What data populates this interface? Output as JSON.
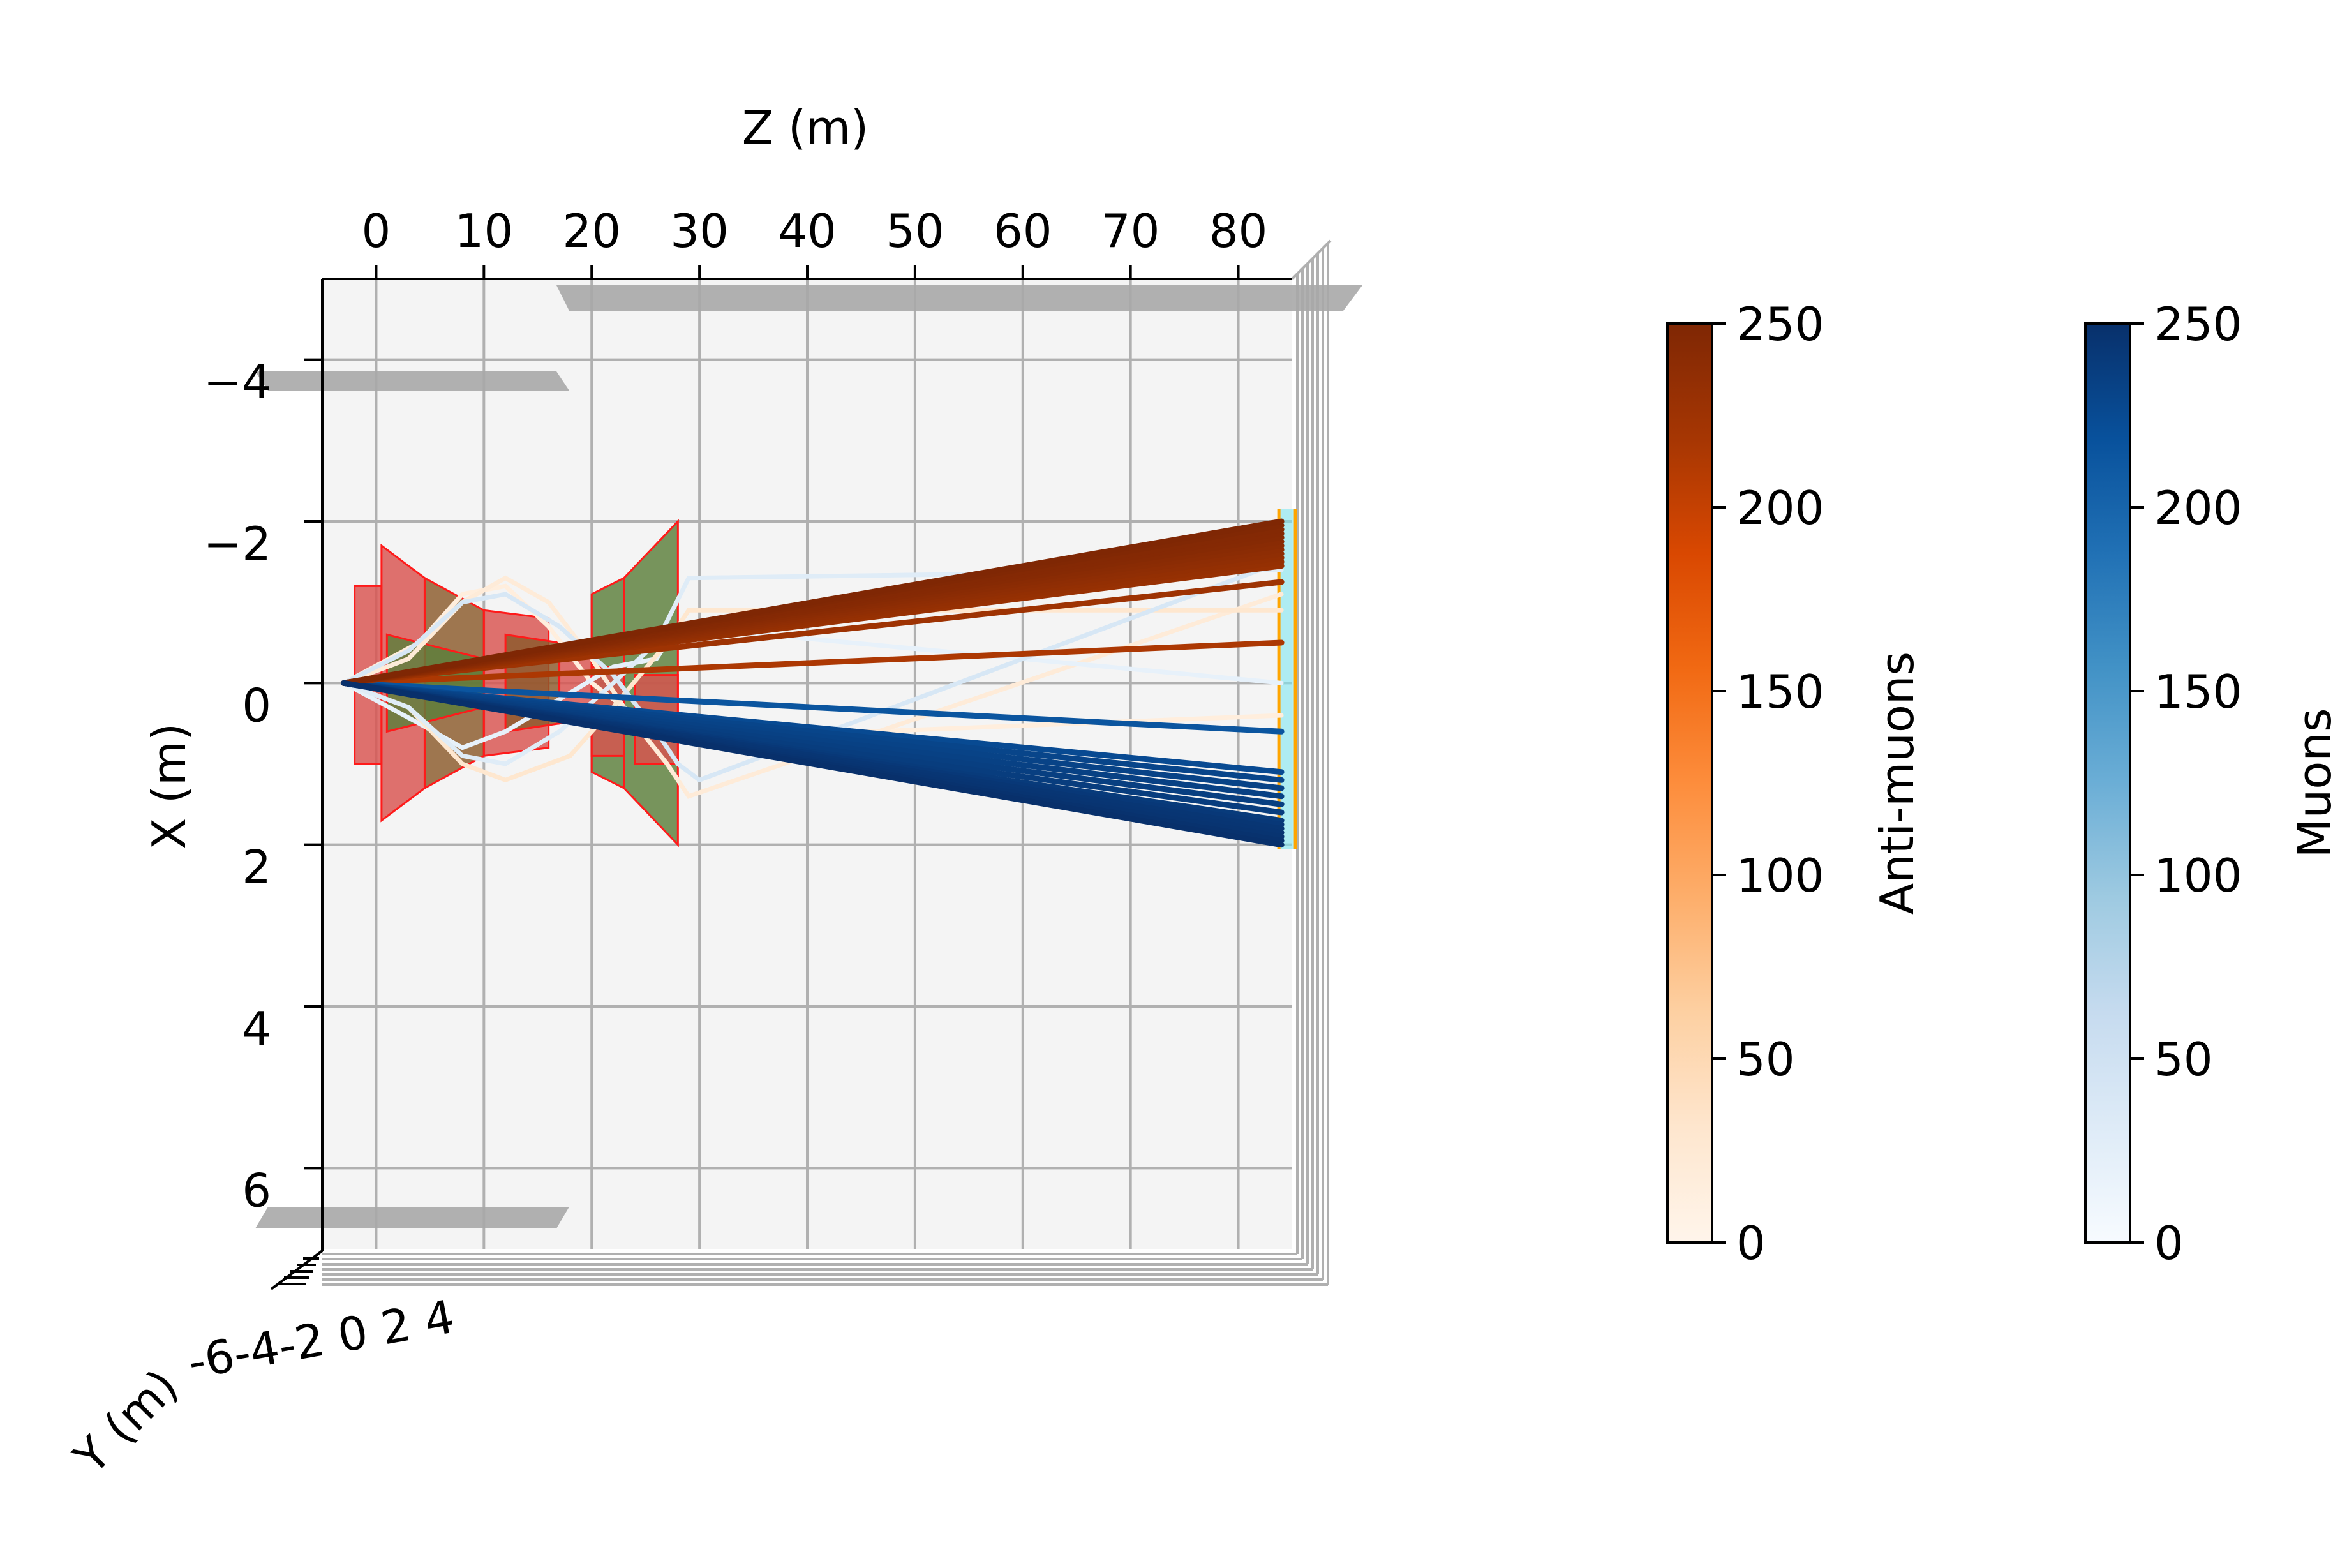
{
  "chart_data": {
    "type": "line",
    "projection": "3d",
    "view": "top-down (Z horizontal, X vertical)",
    "xlabel": "Z (m)",
    "ylabel": "X (m)",
    "zlabel": "Y (m)",
    "z_ticks": [
      0,
      10,
      20,
      30,
      40,
      50,
      60,
      70,
      80
    ],
    "x_ticks": [
      -4,
      -2,
      0,
      2,
      4,
      6
    ],
    "y_axis_ticks_label": "-6-4-2 0 2 4",
    "xlim_z": [
      -5,
      85
    ],
    "ylim_x": [
      -5,
      7
    ],
    "grid": true,
    "background_color": "#f4f4f4",
    "colorbars": [
      {
        "label": "Anti-muons",
        "colormap": "Oranges",
        "ticks": [
          0,
          50,
          100,
          150,
          200,
          250
        ],
        "range": [
          0,
          250
        ]
      },
      {
        "label": "Muons",
        "colormap": "Blues",
        "ticks": [
          0,
          50,
          100,
          150,
          200,
          250
        ],
        "range": [
          0,
          250
        ]
      }
    ],
    "detector_plane_z": 84,
    "colors": {
      "magnet_red": "#d9534f",
      "magnet_green": "#5b7f3a",
      "magnet_brown": "#8b5a2b",
      "plane_orange": "#ffa500",
      "plane_cyan": "#7fe6f0",
      "frame_gray": "#a9a9a9",
      "dark_orange": "#7f2704",
      "dark_blue": "#08306b"
    },
    "series": [
      {
        "kind": "anti-muon",
        "momentum": 250,
        "points": [
          [
            -3,
            0
          ],
          [
            84,
            -2.0
          ]
        ]
      },
      {
        "kind": "anti-muon",
        "momentum": 248,
        "points": [
          [
            -3,
            0
          ],
          [
            84,
            -1.95
          ]
        ]
      },
      {
        "kind": "anti-muon",
        "momentum": 246,
        "points": [
          [
            -3,
            0
          ],
          [
            84,
            -1.9
          ]
        ]
      },
      {
        "kind": "anti-muon",
        "momentum": 245,
        "points": [
          [
            -3,
            0
          ],
          [
            84,
            -1.85
          ]
        ]
      },
      {
        "kind": "anti-muon",
        "momentum": 244,
        "points": [
          [
            -3,
            0
          ],
          [
            84,
            -1.8
          ]
        ]
      },
      {
        "kind": "anti-muon",
        "momentum": 242,
        "points": [
          [
            -3,
            0
          ],
          [
            84,
            -1.75
          ]
        ]
      },
      {
        "kind": "anti-muon",
        "momentum": 240,
        "points": [
          [
            -3,
            0
          ],
          [
            84,
            -1.7
          ]
        ]
      },
      {
        "kind": "anti-muon",
        "momentum": 238,
        "points": [
          [
            -3,
            0
          ],
          [
            84,
            -1.65
          ]
        ]
      },
      {
        "kind": "anti-muon",
        "momentum": 236,
        "points": [
          [
            -3,
            0
          ],
          [
            84,
            -1.6
          ]
        ]
      },
      {
        "kind": "anti-muon",
        "momentum": 234,
        "points": [
          [
            -3,
            0
          ],
          [
            84,
            -1.55
          ]
        ]
      },
      {
        "kind": "anti-muon",
        "momentum": 232,
        "points": [
          [
            -3,
            0
          ],
          [
            84,
            -1.5
          ]
        ]
      },
      {
        "kind": "anti-muon",
        "momentum": 230,
        "points": [
          [
            -3,
            0
          ],
          [
            84,
            -1.45
          ]
        ]
      },
      {
        "kind": "anti-muon",
        "momentum": 225,
        "points": [
          [
            -3,
            0
          ],
          [
            84,
            -1.25
          ]
        ]
      },
      {
        "kind": "anti-muon",
        "momentum": 215,
        "points": [
          [
            -3,
            0
          ],
          [
            84,
            -0.5
          ]
        ]
      },
      {
        "kind": "anti-muon",
        "momentum": 30,
        "points": [
          [
            -3,
            0
          ],
          [
            3,
            0.3
          ],
          [
            8,
            1.0
          ],
          [
            12,
            1.2
          ],
          [
            18,
            0.9
          ],
          [
            22,
            0.3
          ],
          [
            27,
            -0.5
          ],
          [
            29,
            -0.9
          ],
          [
            84,
            -0.9
          ]
        ]
      },
      {
        "kind": "anti-muon",
        "momentum": 20,
        "points": [
          [
            -3,
            0
          ],
          [
            3,
            -0.3
          ],
          [
            8,
            -1.0
          ],
          [
            12,
            -1.3
          ],
          [
            16,
            -1.0
          ],
          [
            20,
            -0.3
          ],
          [
            24,
            0.5
          ],
          [
            27,
            1.0
          ],
          [
            29,
            1.4
          ],
          [
            84,
            -1.1
          ]
        ]
      },
      {
        "kind": "anti-muon",
        "momentum": 15,
        "points": [
          [
            -3,
            0
          ],
          [
            4,
            -0.5
          ],
          [
            8,
            -1.1
          ],
          [
            12,
            -1.2
          ],
          [
            16,
            -0.7
          ],
          [
            20,
            0.0
          ],
          [
            24,
            0.4
          ],
          [
            27,
            0.7
          ],
          [
            84,
            0.4
          ]
        ]
      },
      {
        "kind": "muon",
        "momentum": 250,
        "points": [
          [
            -3,
            0
          ],
          [
            84,
            2.0
          ]
        ]
      },
      {
        "kind": "muon",
        "momentum": 248,
        "points": [
          [
            -3,
            0
          ],
          [
            84,
            1.95
          ]
        ]
      },
      {
        "kind": "muon",
        "momentum": 246,
        "points": [
          [
            -3,
            0
          ],
          [
            84,
            1.9
          ]
        ]
      },
      {
        "kind": "muon",
        "momentum": 245,
        "points": [
          [
            -3,
            0
          ],
          [
            84,
            1.85
          ]
        ]
      },
      {
        "kind": "muon",
        "momentum": 244,
        "points": [
          [
            -3,
            0
          ],
          [
            84,
            1.8
          ]
        ]
      },
      {
        "kind": "muon",
        "momentum": 242,
        "points": [
          [
            -3,
            0
          ],
          [
            84,
            1.75
          ]
        ]
      },
      {
        "kind": "muon",
        "momentum": 240,
        "points": [
          [
            -3,
            0
          ],
          [
            84,
            1.7
          ]
        ]
      },
      {
        "kind": "muon",
        "momentum": 238,
        "points": [
          [
            -3,
            0
          ],
          [
            84,
            1.6
          ]
        ]
      },
      {
        "kind": "muon",
        "momentum": 236,
        "points": [
          [
            -3,
            0
          ],
          [
            84,
            1.5
          ]
        ]
      },
      {
        "kind": "muon",
        "momentum": 234,
        "points": [
          [
            -3,
            0
          ],
          [
            84,
            1.4
          ]
        ]
      },
      {
        "kind": "muon",
        "momentum": 232,
        "points": [
          [
            -3,
            0
          ],
          [
            84,
            1.3
          ]
        ]
      },
      {
        "kind": "muon",
        "momentum": 230,
        "points": [
          [
            -3,
            0
          ],
          [
            84,
            1.2
          ]
        ]
      },
      {
        "kind": "muon",
        "momentum": 225,
        "points": [
          [
            -3,
            0
          ],
          [
            84,
            1.1
          ]
        ]
      },
      {
        "kind": "muon",
        "momentum": 215,
        "points": [
          [
            -3,
            0
          ],
          [
            84,
            0.6
          ]
        ]
      },
      {
        "kind": "muon",
        "momentum": 40,
        "points": [
          [
            -3,
            0
          ],
          [
            3,
            -0.4
          ],
          [
            8,
            -1.0
          ],
          [
            12,
            -1.1
          ],
          [
            17,
            -0.7
          ],
          [
            22,
            -0.1
          ],
          [
            26,
            0.6
          ],
          [
            28,
            1.0
          ],
          [
            30,
            1.2
          ],
          [
            84,
            -1.5
          ]
        ]
      },
      {
        "kind": "muon",
        "momentum": 30,
        "points": [
          [
            -3,
            0
          ],
          [
            3,
            0.3
          ],
          [
            8,
            0.9
          ],
          [
            12,
            1.0
          ],
          [
            17,
            0.6
          ],
          [
            22,
            0.0
          ],
          [
            26,
            -0.5
          ],
          [
            29,
            -1.3
          ],
          [
            84,
            -1.4
          ]
        ]
      },
      {
        "kind": "muon",
        "momentum": 20,
        "points": [
          [
            -3,
            0
          ],
          [
            4,
            0.5
          ],
          [
            8,
            0.8
          ],
          [
            12,
            0.6
          ],
          [
            17,
            0.2
          ],
          [
            22,
            -0.2
          ],
          [
            26,
            -0.3
          ],
          [
            28,
            -0.7
          ],
          [
            84,
            0.0
          ]
        ]
      }
    ]
  }
}
